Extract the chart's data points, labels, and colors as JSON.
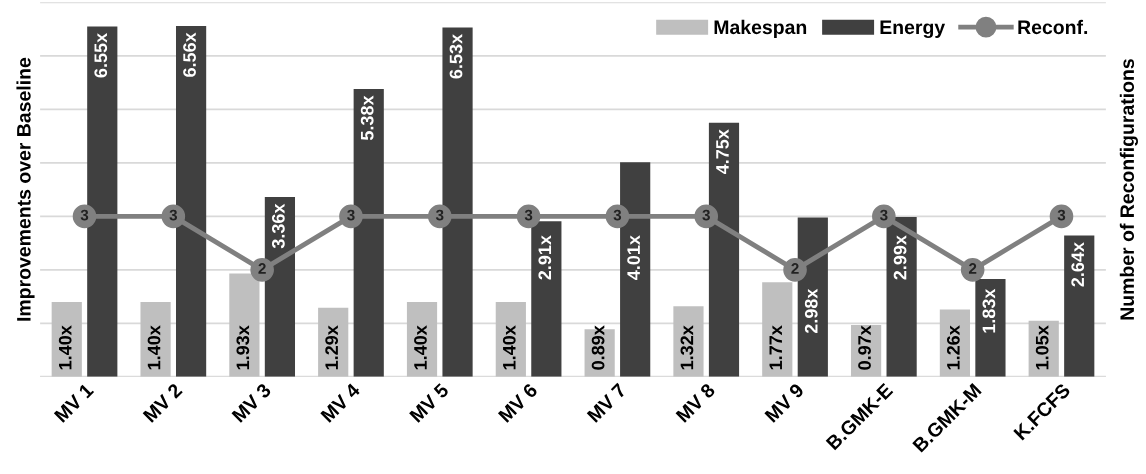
{
  "chart_data": {
    "type": "bar",
    "ylabel": "Improvements over Baseline",
    "y2label": "Number of Reconfigurations",
    "categories": [
      "MV 1",
      "MV 2",
      "MV 3",
      "MV 4",
      "MV 5",
      "MV 6",
      "MV 7",
      "MV 8",
      "MV 9",
      "B.GMK-E",
      "B.GMK-M",
      "K.FCFS"
    ],
    "series": [
      {
        "name": "Makespan",
        "color": "#bfbfbf",
        "values": [
          1.4,
          1.4,
          1.93,
          1.29,
          1.4,
          1.4,
          0.89,
          1.32,
          1.77,
          0.97,
          1.26,
          1.05
        ],
        "value_labels": [
          "1.40x",
          "1.40x",
          "1.93x",
          "1.29x",
          "1.40x",
          "1.40x",
          "0.89x",
          "1.32x",
          "1.77x",
          "0.97x",
          "1.26x",
          "1.05x"
        ]
      },
      {
        "name": "Energy",
        "color": "#404040",
        "values": [
          6.55,
          6.56,
          3.36,
          5.38,
          6.53,
          2.91,
          4.01,
          4.75,
          2.98,
          2.99,
          1.83,
          2.64
        ],
        "value_labels": [
          "6.55x",
          "6.56x",
          "3.36x",
          "5.38x",
          "6.53x",
          "2.91x",
          "4.01x",
          "4.75x",
          "2.98x",
          "2.99x",
          "1.83x",
          "2.64x"
        ]
      },
      {
        "name": "Reconf.",
        "type": "line",
        "color": "#808080",
        "marker": "circle",
        "values": [
          3,
          3,
          2,
          3,
          3,
          3,
          3,
          3,
          2,
          3,
          2,
          3
        ],
        "value_labels": [
          "3",
          "3",
          "2",
          "3",
          "3",
          "3",
          "3",
          "3",
          "2",
          "3",
          "2",
          "3"
        ]
      }
    ],
    "ylim": [
      0,
      7
    ],
    "yticks": [
      {
        "value": 0,
        "label": null
      },
      {
        "value": 1,
        "label": null
      },
      {
        "value": 2,
        "label": null
      },
      {
        "value": 3,
        "label": null
      },
      {
        "value": 4,
        "label": null
      },
      {
        "value": 5,
        "label": null
      },
      {
        "value": 6,
        "label": null
      },
      {
        "value": 7,
        "label": null
      }
    ],
    "tick_labels": "x",
    "grid": "y",
    "legend": "top right"
  }
}
